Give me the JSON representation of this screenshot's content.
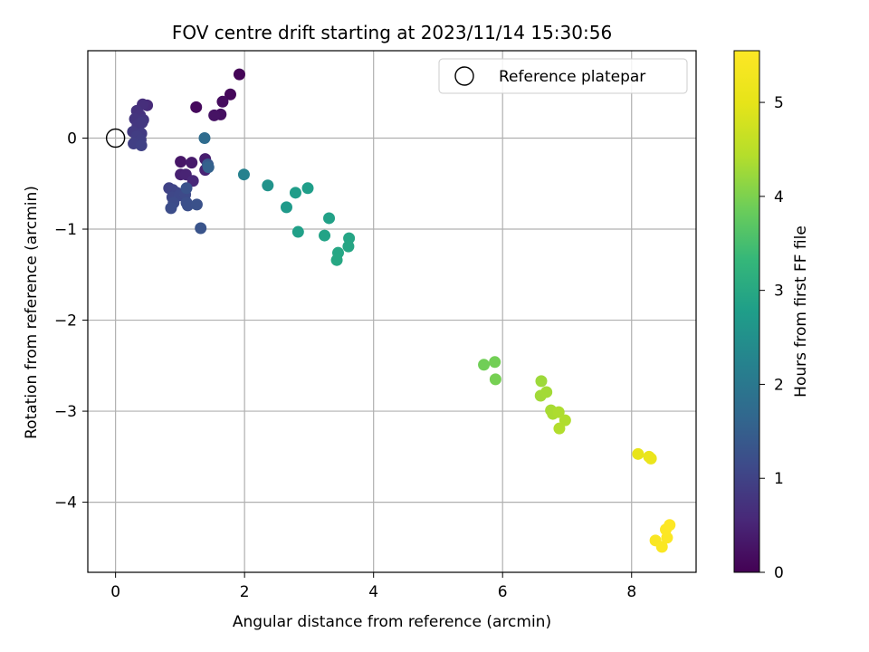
{
  "chart_data": {
    "type": "scatter",
    "title": "FOV centre drift starting at 2023/11/14 15:30:56",
    "xlabel": "Angular distance from reference (arcmin)",
    "ylabel": "Rotation from reference (arcmin)",
    "xlim": [
      -0.43,
      9.0
    ],
    "ylim": [
      -4.77,
      0.96
    ],
    "xticks": [
      0,
      2,
      4,
      6,
      8
    ],
    "yticks": [
      0,
      -1,
      -2,
      -3,
      -4
    ],
    "xtick_labels": [
      "0",
      "2",
      "4",
      "6",
      "8"
    ],
    "ytick_labels": [
      "0",
      "−1",
      "−2",
      "−3",
      "−4"
    ],
    "grid": true,
    "legend": {
      "position": "top-right",
      "entries": [
        "Reference platepar"
      ]
    },
    "colormap": "viridis",
    "colorbar": {
      "label": "Hours from first FF file",
      "range": [
        0,
        5.55
      ],
      "ticks": [
        0,
        1,
        2,
        3,
        4,
        5
      ],
      "tick_labels": [
        "0",
        "1",
        "2",
        "3",
        "4",
        "5"
      ]
    },
    "reference_point": {
      "name": "Reference platepar",
      "x": 0,
      "y": 0
    },
    "points": [
      {
        "x": 1.92,
        "y": 0.7,
        "t": 0.05
      },
      {
        "x": 1.78,
        "y": 0.48,
        "t": 0.1
      },
      {
        "x": 1.66,
        "y": 0.4,
        "t": 0.15
      },
      {
        "x": 1.63,
        "y": 0.26,
        "t": 0.2
      },
      {
        "x": 1.53,
        "y": 0.25,
        "t": 0.25
      },
      {
        "x": 1.25,
        "y": 0.34,
        "t": 0.12
      },
      {
        "x": 1.01,
        "y": -0.26,
        "t": 0.3
      },
      {
        "x": 1.18,
        "y": -0.27,
        "t": 0.35
      },
      {
        "x": 1.39,
        "y": -0.23,
        "t": 0.4
      },
      {
        "x": 1.01,
        "y": -0.4,
        "t": 0.45
      },
      {
        "x": 1.09,
        "y": -0.4,
        "t": 0.5
      },
      {
        "x": 1.2,
        "y": -0.47,
        "t": 0.55
      },
      {
        "x": 1.39,
        "y": -0.35,
        "t": 0.5
      },
      {
        "x": 0.49,
        "y": 0.36,
        "t": 0.6
      },
      {
        "x": 0.42,
        "y": 0.37,
        "t": 0.65
      },
      {
        "x": 0.33,
        "y": 0.3,
        "t": 0.7
      },
      {
        "x": 0.38,
        "y": 0.25,
        "t": 0.72
      },
      {
        "x": 0.3,
        "y": 0.21,
        "t": 0.75
      },
      {
        "x": 0.43,
        "y": 0.2,
        "t": 0.78
      },
      {
        "x": 0.34,
        "y": 0.14,
        "t": 0.8
      },
      {
        "x": 0.41,
        "y": 0.17,
        "t": 0.82
      },
      {
        "x": 0.27,
        "y": 0.07,
        "t": 0.85
      },
      {
        "x": 0.4,
        "y": 0.05,
        "t": 0.88
      },
      {
        "x": 0.33,
        "y": 0.02,
        "t": 0.9
      },
      {
        "x": 0.39,
        "y": -0.02,
        "t": 0.92
      },
      {
        "x": 0.28,
        "y": -0.06,
        "t": 0.95
      },
      {
        "x": 0.4,
        "y": -0.08,
        "t": 0.98
      },
      {
        "x": 0.83,
        "y": -0.55,
        "t": 1.0
      },
      {
        "x": 0.89,
        "y": -0.57,
        "t": 1.02
      },
      {
        "x": 0.95,
        "y": -0.6,
        "t": 1.05
      },
      {
        "x": 0.88,
        "y": -0.65,
        "t": 1.08
      },
      {
        "x": 0.99,
        "y": -0.63,
        "t": 1.1
      },
      {
        "x": 1.08,
        "y": -0.62,
        "t": 1.12
      },
      {
        "x": 0.9,
        "y": -0.71,
        "t": 1.15
      },
      {
        "x": 0.86,
        "y": -0.77,
        "t": 1.18
      },
      {
        "x": 1.1,
        "y": -0.71,
        "t": 1.2
      },
      {
        "x": 1.12,
        "y": -0.74,
        "t": 1.22
      },
      {
        "x": 1.26,
        "y": -0.73,
        "t": 1.25
      },
      {
        "x": 1.1,
        "y": -0.55,
        "t": 1.28
      },
      {
        "x": 1.32,
        "y": -0.99,
        "t": 1.3
      },
      {
        "x": 1.43,
        "y": -0.29,
        "t": 1.4
      },
      {
        "x": 1.44,
        "y": -0.32,
        "t": 1.55
      },
      {
        "x": 1.38,
        "y": 0.0,
        "t": 1.75
      },
      {
        "x": 1.99,
        "y": -0.4,
        "t": 2.2
      },
      {
        "x": 2.36,
        "y": -0.52,
        "t": 2.55
      },
      {
        "x": 2.79,
        "y": -0.6,
        "t": 2.75
      },
      {
        "x": 2.98,
        "y": -0.55,
        "t": 2.78
      },
      {
        "x": 2.65,
        "y": -0.76,
        "t": 2.7
      },
      {
        "x": 2.83,
        "y": -1.03,
        "t": 2.82
      },
      {
        "x": 3.31,
        "y": -0.88,
        "t": 2.85
      },
      {
        "x": 3.24,
        "y": -1.07,
        "t": 2.88
      },
      {
        "x": 3.62,
        "y": -1.1,
        "t": 2.92
      },
      {
        "x": 3.61,
        "y": -1.19,
        "t": 2.94
      },
      {
        "x": 3.45,
        "y": -1.26,
        "t": 2.96
      },
      {
        "x": 3.43,
        "y": -1.34,
        "t": 2.98
      },
      {
        "x": 5.71,
        "y": -2.49,
        "t": 3.9
      },
      {
        "x": 5.88,
        "y": -2.46,
        "t": 3.92
      },
      {
        "x": 5.89,
        "y": -2.65,
        "t": 3.95
      },
      {
        "x": 6.6,
        "y": -2.67,
        "t": 4.25
      },
      {
        "x": 6.59,
        "y": -2.83,
        "t": 4.28
      },
      {
        "x": 6.68,
        "y": -2.79,
        "t": 4.3
      },
      {
        "x": 6.75,
        "y": -2.99,
        "t": 4.33
      },
      {
        "x": 6.78,
        "y": -3.03,
        "t": 4.35
      },
      {
        "x": 6.87,
        "y": -3.01,
        "t": 4.38
      },
      {
        "x": 6.97,
        "y": -3.1,
        "t": 4.4
      },
      {
        "x": 6.88,
        "y": -3.19,
        "t": 4.42
      },
      {
        "x": 8.1,
        "y": -3.47,
        "t": 5.05
      },
      {
        "x": 8.27,
        "y": -3.5,
        "t": 5.1
      },
      {
        "x": 8.3,
        "y": -3.52,
        "t": 5.12
      },
      {
        "x": 8.37,
        "y": -4.42,
        "t": 5.45
      },
      {
        "x": 8.47,
        "y": -4.49,
        "t": 5.48
      },
      {
        "x": 8.55,
        "y": -4.39,
        "t": 5.5
      },
      {
        "x": 8.53,
        "y": -4.3,
        "t": 5.52
      },
      {
        "x": 8.59,
        "y": -4.25,
        "t": 5.55
      }
    ]
  }
}
